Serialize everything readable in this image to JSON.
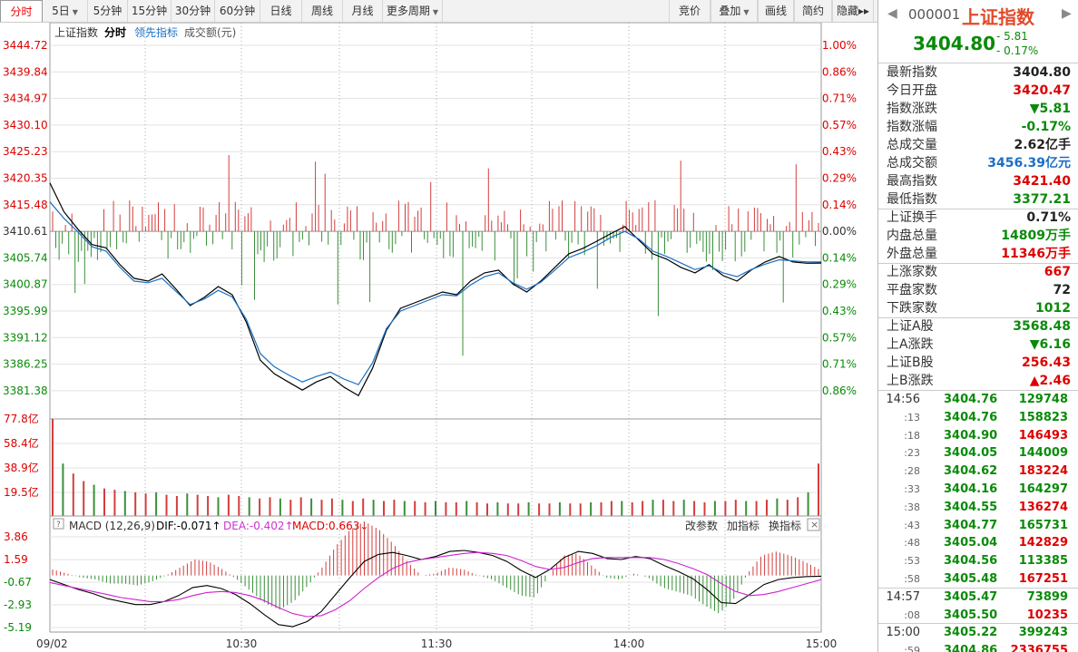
{
  "toolbar": {
    "left": [
      {
        "label": "分时",
        "active": true
      },
      {
        "label": "5日",
        "dropdown": true
      },
      {
        "label": "5分钟"
      },
      {
        "label": "15分钟"
      },
      {
        "label": "30分钟"
      },
      {
        "label": "60分钟"
      },
      {
        "label": "日线"
      },
      {
        "label": "周线"
      },
      {
        "label": "月线"
      },
      {
        "label": "更多周期",
        "dropdown": true
      }
    ],
    "right": [
      {
        "label": "竞价"
      },
      {
        "label": "叠加",
        "dropdown": true
      },
      {
        "label": "画线"
      },
      {
        "label": "简约"
      },
      {
        "label": "隐藏▸▸"
      }
    ]
  },
  "chart_header": {
    "index_name": "上证指数",
    "mode": "分时",
    "leading": "领先指标",
    "turnover": "成交额(元)"
  },
  "price_axis": {
    "left": [
      "3444.72",
      "3439.84",
      "3434.97",
      "3430.10",
      "3425.23",
      "3420.35",
      "3415.48",
      "3410.61",
      "3405.74",
      "3400.87",
      "3395.99",
      "3391.12",
      "3386.25",
      "3381.38"
    ],
    "right": [
      "1.00%",
      "0.86%",
      "0.71%",
      "0.57%",
      "0.43%",
      "0.29%",
      "0.14%",
      "0.00%",
      "0.14%",
      "0.29%",
      "0.43%",
      "0.57%",
      "0.71%",
      "0.86%"
    ]
  },
  "volume_axis": [
    "77.8亿",
    "58.4亿",
    "38.9亿",
    "19.5亿"
  ],
  "macd_axis": [
    "3.86",
    "1.59",
    "-0.67",
    "-2.93",
    "-5.19"
  ],
  "macd_header": {
    "name": "MACD (12,26,9)",
    "dif": "DIF:-0.071↑",
    "dea": "DEA:-0.402↑",
    "macd": "MACD:0.663↓",
    "btn_params": "改参数",
    "btn_add": "加指标",
    "btn_switch": "换指标",
    "close": "×"
  },
  "time_axis": [
    "09/02",
    "10:30",
    "11:30",
    "14:00",
    "15:00"
  ],
  "chart_data": {
    "type": "line",
    "prev_close": 3410.61,
    "ylim": [
      3376.5,
      3444.72
    ],
    "times": [
      "09:30",
      "10:00",
      "10:30",
      "11:00",
      "11:30",
      "13:30",
      "14:00",
      "14:30",
      "15:00"
    ],
    "series": [
      {
        "name": "上证指数",
        "color": "#000000",
        "values": [
          3419.5,
          3414.2,
          3411.0,
          3408.2,
          3407.6,
          3404.5,
          3402.0,
          3401.5,
          3402.8,
          3400.0,
          3397.0,
          3398.5,
          3400.5,
          3399.0,
          3394.0,
          3387.0,
          3384.5,
          3383.0,
          3381.5,
          3383.0,
          3384.0,
          3382.0,
          3380.5,
          3385.5,
          3392.5,
          3396.5,
          3397.5,
          3398.5,
          3399.5,
          3399.0,
          3401.5,
          3403.0,
          3403.5,
          3401.0,
          3399.5,
          3401.5,
          3404.0,
          3406.5,
          3407.5,
          3408.8,
          3410.2,
          3411.5,
          3409.0,
          3406.5,
          3405.5,
          3404.0,
          3403.0,
          3404.5,
          3402.5,
          3401.5,
          3403.5,
          3405.0,
          3406.0,
          3405.0,
          3404.76,
          3404.8
        ]
      },
      {
        "name": "领先指标",
        "color": "#1a6fc4",
        "values": [
          3416.0,
          3413.0,
          3410.5,
          3407.8,
          3407.0,
          3404.0,
          3401.5,
          3401.2,
          3402.0,
          3399.6,
          3397.2,
          3398.2,
          3399.8,
          3398.6,
          3394.5,
          3388.2,
          3385.8,
          3384.3,
          3383.0,
          3384.0,
          3384.8,
          3383.5,
          3382.5,
          3386.5,
          3392.8,
          3396.0,
          3397.0,
          3398.0,
          3399.0,
          3398.8,
          3400.8,
          3402.3,
          3403.0,
          3401.2,
          3400.0,
          3401.3,
          3403.5,
          3405.8,
          3406.8,
          3408.0,
          3409.5,
          3410.6,
          3409.2,
          3407.0,
          3406.0,
          3404.8,
          3403.6,
          3404.3,
          3403.0,
          3402.3,
          3403.6,
          3404.6,
          3405.4,
          3405.2,
          3405.0,
          3405.0
        ]
      }
    ],
    "volume": {
      "unit": "亿",
      "ylim": [
        0,
        77.8
      ],
      "values": [
        77.8,
        42,
        34,
        28,
        25,
        22,
        21,
        20,
        19,
        18,
        19,
        17,
        16,
        18,
        17,
        16,
        15,
        17,
        16,
        15,
        14,
        15,
        14,
        13,
        15,
        14,
        13,
        14,
        13,
        12,
        14,
        13,
        12,
        13,
        12,
        12,
        11,
        12,
        11,
        11,
        12,
        11,
        10,
        11,
        10,
        10,
        11,
        10,
        10,
        11,
        10,
        10,
        11,
        11,
        12,
        12,
        11,
        12,
        13,
        13,
        12,
        13,
        12,
        11,
        12,
        12,
        13,
        12,
        12,
        13,
        14,
        13,
        15,
        19,
        42
      ]
    },
    "macd": {
      "ylim": [
        -5.19,
        3.86
      ],
      "dif": [
        -0.4,
        -0.9,
        -1.4,
        -1.8,
        -2.3,
        -2.6,
        -2.9,
        -2.9,
        -2.6,
        -2.0,
        -1.2,
        -1.0,
        -1.3,
        -1.9,
        -2.8,
        -3.9,
        -4.9,
        -5.1,
        -4.6,
        -3.6,
        -1.9,
        -0.2,
        1.4,
        2.1,
        2.3,
        2.0,
        1.6,
        1.9,
        2.4,
        2.5,
        2.3,
        2.0,
        1.4,
        0.5,
        -0.2,
        0.6,
        1.8,
        2.4,
        2.2,
        1.7,
        1.6,
        1.9,
        1.7,
        1.0,
        0.4,
        -0.3,
        -1.4,
        -2.7,
        -2.8,
        -1.9,
        -0.9,
        -0.4,
        -0.2,
        -0.1,
        -0.07
      ],
      "dea": [
        -0.7,
        -1.0,
        -1.3,
        -1.6,
        -1.9,
        -2.2,
        -2.4,
        -2.6,
        -2.6,
        -2.4,
        -2.0,
        -1.7,
        -1.6,
        -1.7,
        -2.0,
        -2.5,
        -3.2,
        -3.8,
        -4.1,
        -4.0,
        -3.4,
        -2.5,
        -1.3,
        -0.2,
        0.7,
        1.3,
        1.6,
        1.8,
        2.0,
        2.2,
        2.3,
        2.2,
        2.0,
        1.5,
        0.9,
        0.6,
        0.8,
        1.3,
        1.7,
        1.8,
        1.8,
        1.8,
        1.8,
        1.6,
        1.2,
        0.7,
        0.1,
        -0.8,
        -1.6,
        -2.0,
        -1.9,
        -1.6,
        -1.2,
        -0.8,
        -0.4
      ]
    }
  },
  "panel": {
    "code": "000001",
    "name": "上证指数",
    "price": "3404.80",
    "change": "- 5.81",
    "change_pct": "- 0.17%",
    "stats_a": [
      {
        "label": "最新指数",
        "value": "3404.80",
        "color": "dark"
      },
      {
        "label": "今日开盘",
        "value": "3420.47",
        "color": "red"
      },
      {
        "label": "指数涨跌",
        "value": "▼5.81",
        "color": "green"
      },
      {
        "label": "指数涨幅",
        "value": "-0.17%",
        "color": "green"
      },
      {
        "label": "总成交量",
        "value": "2.62亿手",
        "color": "dark"
      },
      {
        "label": "总成交额",
        "value": "3456.39亿元",
        "color": "blue"
      },
      {
        "label": "最高指数",
        "value": "3421.40",
        "color": "red"
      },
      {
        "label": "最低指数",
        "value": "3377.21",
        "color": "green"
      }
    ],
    "stats_b": [
      {
        "label": "上证换手",
        "value": "0.71%",
        "color": "dark"
      },
      {
        "label": "内盘总量",
        "value": "14809万手",
        "color": "green"
      },
      {
        "label": "外盘总量",
        "value": "11346万手",
        "color": "red"
      }
    ],
    "stats_c": [
      {
        "label": "上涨家数",
        "value": "667",
        "color": "red"
      },
      {
        "label": "平盘家数",
        "value": "72",
        "color": "dark"
      },
      {
        "label": "下跌家数",
        "value": "1012",
        "color": "green"
      }
    ],
    "stats_d": [
      {
        "label": "上证A股",
        "value": "3568.48",
        "color": "green"
      },
      {
        "label": "上A涨跌",
        "value": "▼6.16",
        "color": "green"
      },
      {
        "label": "上证B股",
        "value": "256.43",
        "color": "red"
      },
      {
        "label": "上B涨跌",
        "value": "▲2.46",
        "color": "red"
      }
    ],
    "ticks": [
      {
        "time": "14:56",
        "price": "3404.76",
        "vol": "129748",
        "color": "green",
        "major": true
      },
      {
        "time": ":13",
        "price": "3404.76",
        "vol": "158823",
        "color": "green"
      },
      {
        "time": ":18",
        "price": "3404.90",
        "vol": "146493",
        "color": "red"
      },
      {
        "time": ":23",
        "price": "3404.05",
        "vol": "144009",
        "color": "green"
      },
      {
        "time": ":28",
        "price": "3404.62",
        "vol": "183224",
        "color": "red"
      },
      {
        "time": ":33",
        "price": "3404.16",
        "vol": "164297",
        "color": "green"
      },
      {
        "time": ":38",
        "price": "3404.55",
        "vol": "136274",
        "color": "red"
      },
      {
        "time": ":43",
        "price": "3404.77",
        "vol": "165731",
        "color": "green"
      },
      {
        "time": ":48",
        "price": "3405.04",
        "vol": "142829",
        "color": "red"
      },
      {
        "time": ":53",
        "price": "3404.56",
        "vol": "113385",
        "color": "green"
      },
      {
        "time": ":58",
        "price": "3405.48",
        "vol": "167251",
        "color": "red"
      },
      {
        "time": "14:57",
        "price": "3405.47",
        "vol": "73899",
        "color": "green",
        "major": true
      },
      {
        "time": ":08",
        "price": "3405.50",
        "vol": "10235",
        "color": "red"
      },
      {
        "time": "15:00",
        "price": "3405.22",
        "vol": "399243",
        "color": "green",
        "major": true
      },
      {
        "time": ":59",
        "price": "3404.86",
        "vol": "2336755",
        "color": "red"
      }
    ]
  }
}
